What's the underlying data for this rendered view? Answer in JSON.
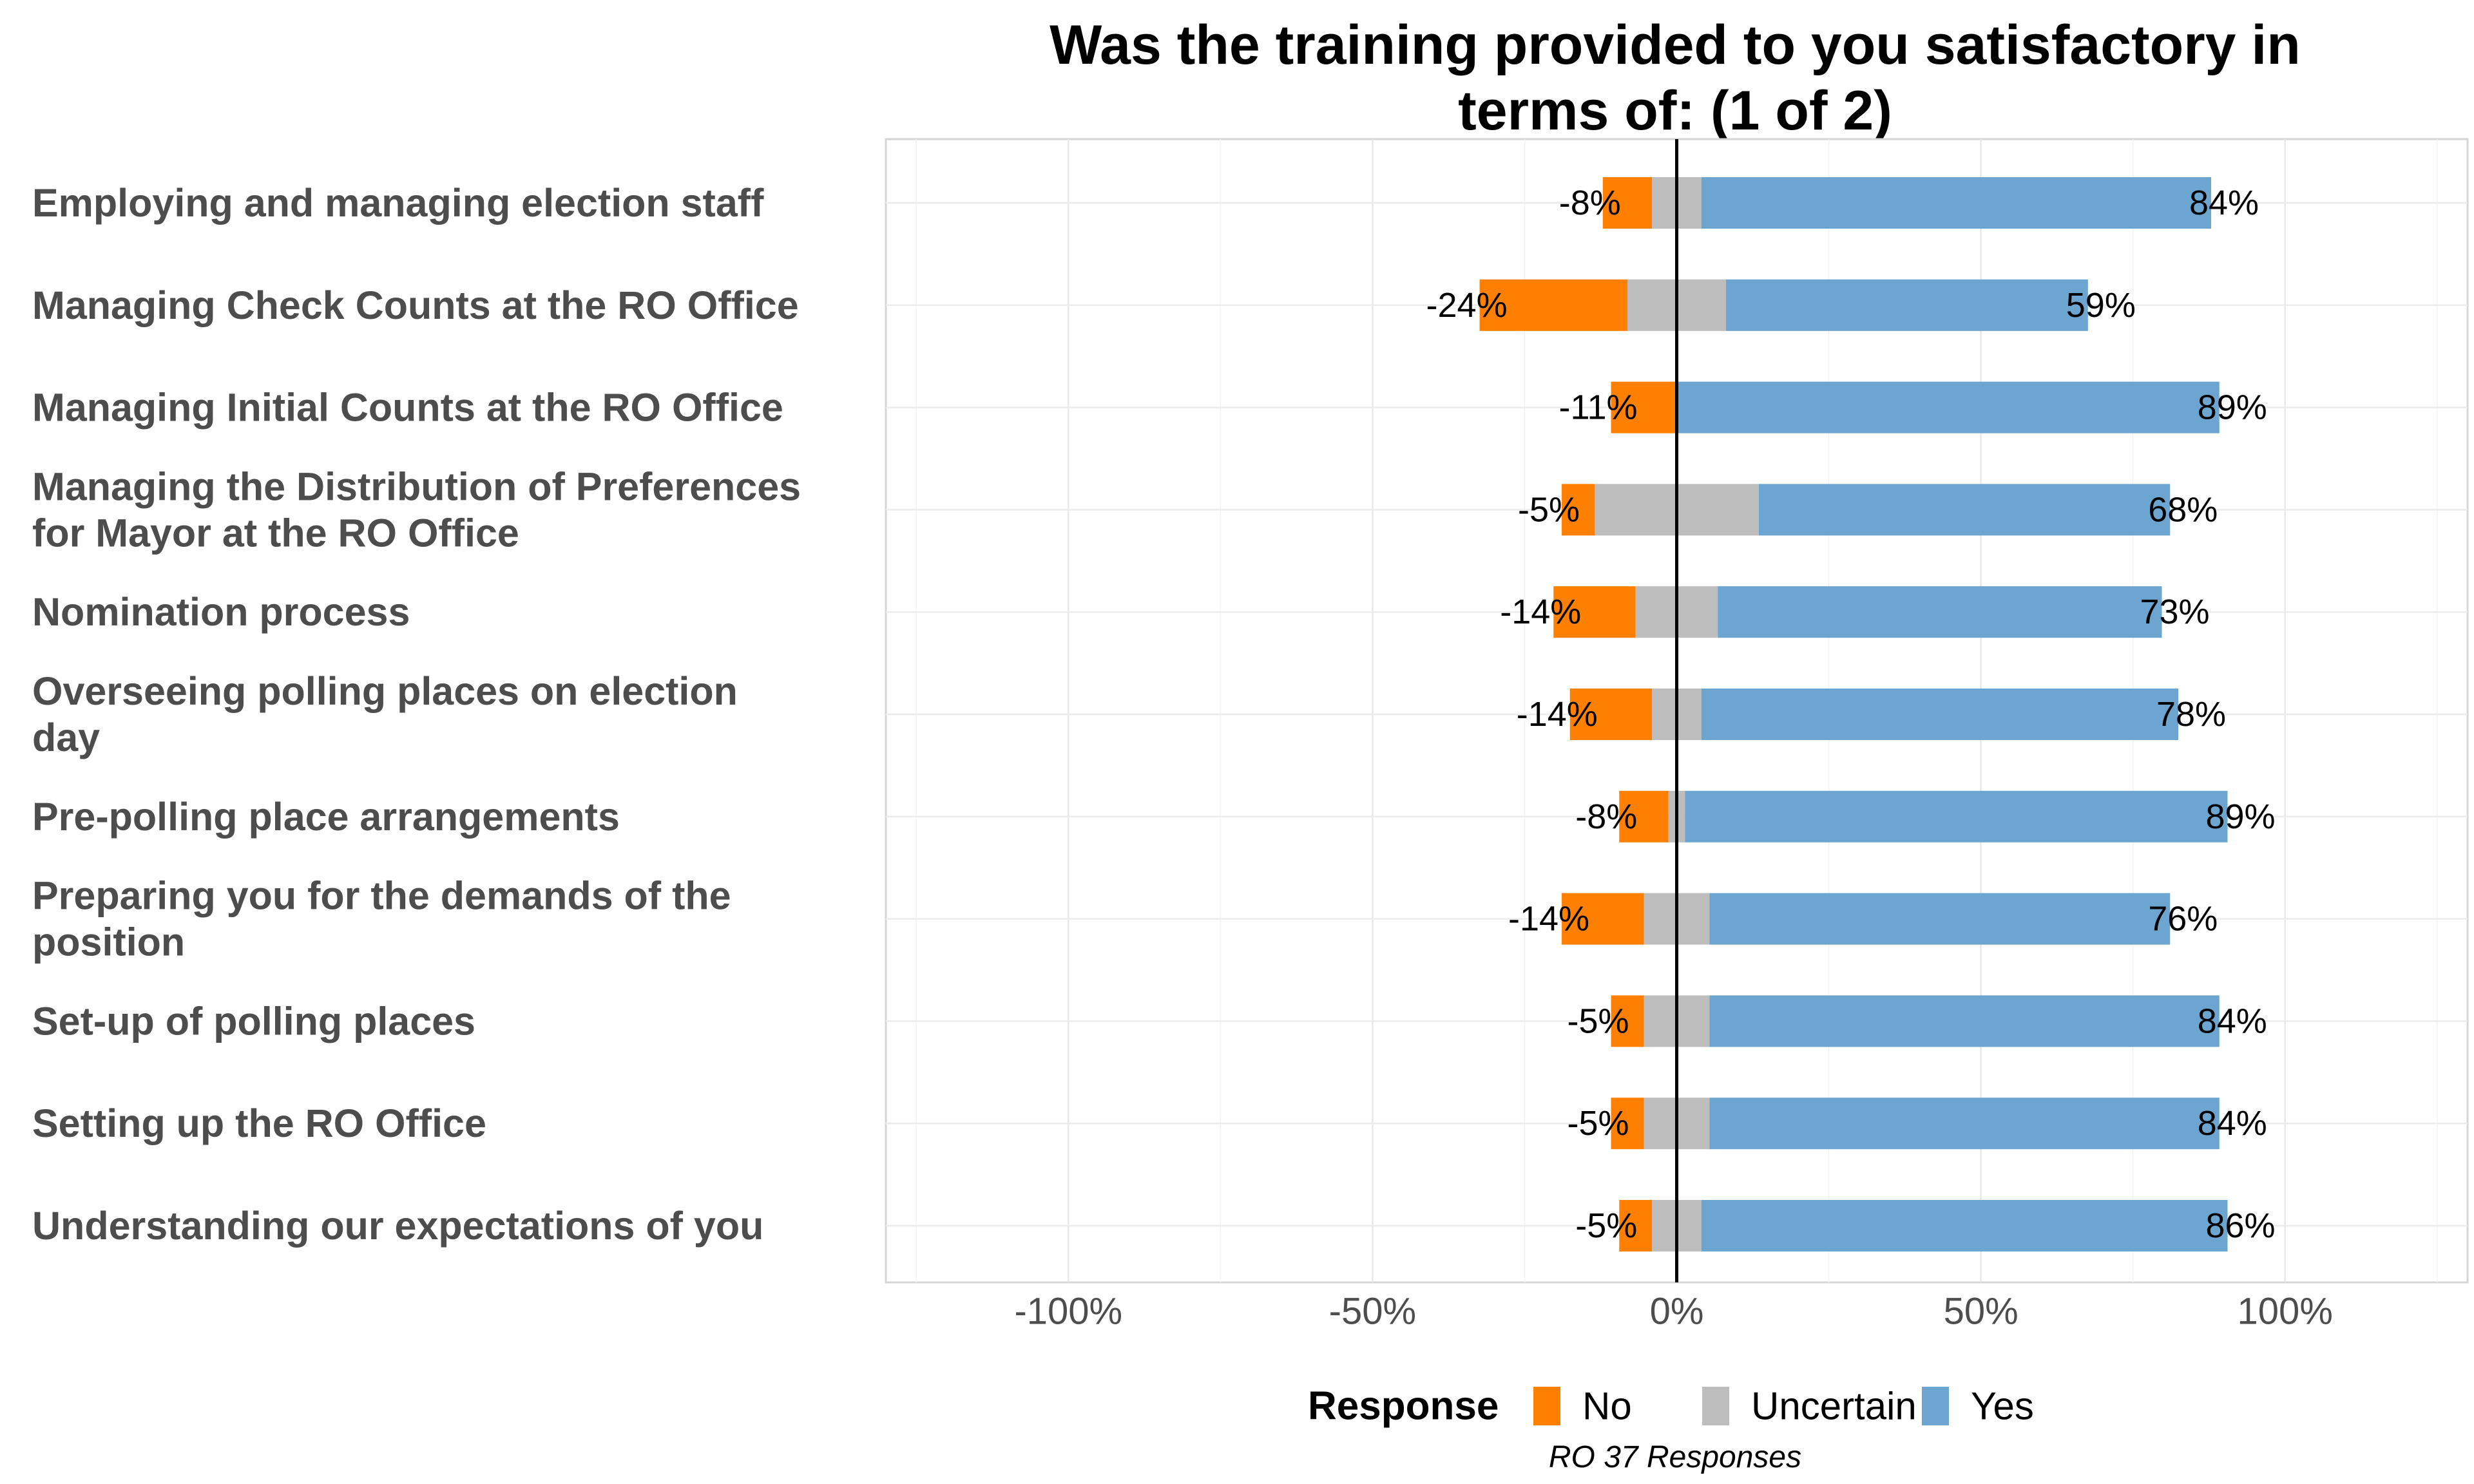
{
  "chart_data": {
    "type": "bar",
    "title_lines": [
      "Was the training provided to you satisfactory in",
      "terms of: (1 of 2)"
    ],
    "categories": [
      [
        "Employing and managing election staff"
      ],
      [
        "Managing Check Counts at the RO Office"
      ],
      [
        "Managing Initial Counts at the RO Office"
      ],
      [
        "Managing the Distribution of Preferences",
        "for Mayor at the RO Office"
      ],
      [
        "Nomination process"
      ],
      [
        "Overseeing polling places on election",
        "day"
      ],
      [
        "Pre-polling place arrangements"
      ],
      [
        "Preparing you for the demands of the",
        "position"
      ],
      [
        "Set-up of polling places"
      ],
      [
        "Setting up the RO Office"
      ],
      [
        "Understanding our expectations of you"
      ]
    ],
    "series": [
      {
        "name": "No",
        "color": "#ff7f00",
        "values": [
          -8.1,
          -24.3,
          -10.8,
          -5.4,
          -13.5,
          -13.5,
          -8.1,
          -13.5,
          -5.4,
          -5.4,
          -5.4
        ]
      },
      {
        "name": "Uncertain",
        "color": "#bdbdbd",
        "values": [
          8.1,
          16.2,
          0,
          27.0,
          13.5,
          8.1,
          2.7,
          10.8,
          10.8,
          10.8,
          8.1
        ]
      },
      {
        "name": "Yes",
        "color": "#6ba5d0",
        "values": [
          83.8,
          59.5,
          89.2,
          67.6,
          73.0,
          78.4,
          89.2,
          75.7,
          83.8,
          83.8,
          86.5
        ]
      }
    ],
    "no_labels": [
      "-8%",
      "-24%",
      "-11%",
      "-5%",
      "-14%",
      "-14%",
      "-8%",
      "-14%",
      "-5%",
      "-5%",
      "-5%"
    ],
    "yes_labels": [
      "84%",
      "59%",
      "89%",
      "68%",
      "73%",
      "78%",
      "89%",
      "76%",
      "84%",
      "84%",
      "86%"
    ],
    "x_ticks": [
      {
        "value": -100,
        "label": "-100%"
      },
      {
        "value": -50,
        "label": "-50%"
      },
      {
        "value": 0,
        "label": "0%"
      },
      {
        "value": 50,
        "label": "50%"
      },
      {
        "value": 100,
        "label": "100%"
      }
    ],
    "xlim": [
      -130,
      130
    ],
    "grid": true,
    "legend": {
      "title": "Response",
      "position": "bottom",
      "items": [
        "No",
        "Uncertain",
        "Yes"
      ]
    },
    "caption": "RO 37 Responses"
  }
}
